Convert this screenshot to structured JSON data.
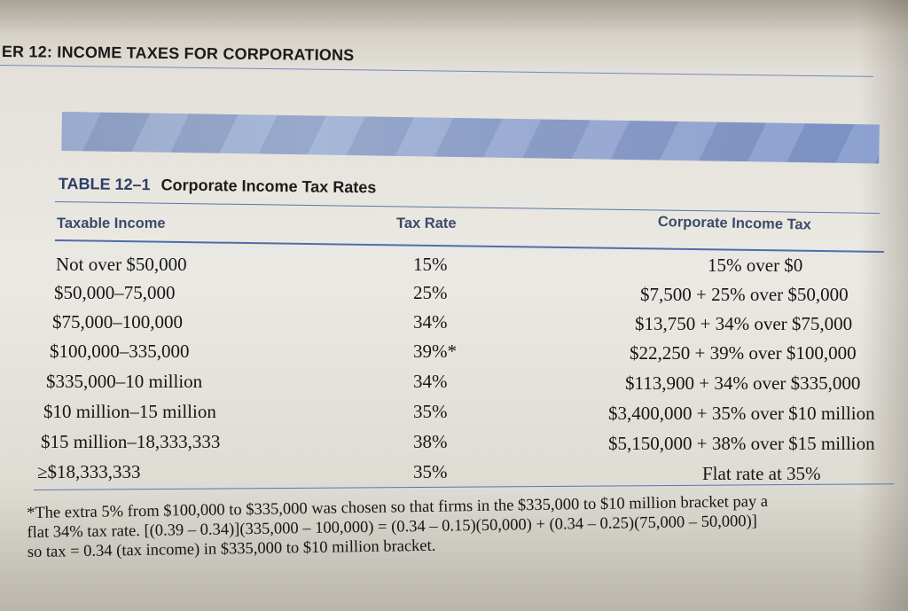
{
  "header": {
    "chapter_title": "ER 12: INCOME TAXES FOR CORPORATIONS"
  },
  "table": {
    "number": "TABLE 12–1",
    "title": "Corporate Income Tax Rates",
    "columns": [
      "Taxable Income",
      "Tax Rate",
      "Corporate Income Tax"
    ],
    "rows": [
      {
        "income": "Not over $50,000",
        "rate": "15%",
        "tax": "15% over $0"
      },
      {
        "income": "$50,000–75,000",
        "rate": "25%",
        "tax": "$7,500 + 25% over $50,000"
      },
      {
        "income": "$75,000–100,000",
        "rate": "34%",
        "tax": "$13,750 + 34% over $75,000"
      },
      {
        "income": "$100,000–335,000",
        "rate": "39%*",
        "tax": "$22,250 + 39% over $100,000"
      },
      {
        "income": "$335,000–10 million",
        "rate": "34%",
        "tax": "$113,900 + 34% over $335,000"
      },
      {
        "income": "$10 million–15 million",
        "rate": "35%",
        "tax": "$3,400,000 + 35% over $10 million"
      },
      {
        "income": "$15 million–18,333,333",
        "rate": "38%",
        "tax": "$5,150,000 + 38% over $15 million"
      },
      {
        "income": "≥$18,333,333",
        "rate": "35%",
        "tax": "Flat rate at 35%"
      }
    ]
  },
  "footnote": {
    "lines": [
      "*The extra 5% from $100,000 to $335,000 was chosen so that firms in the $335,000 to $10 million bracket pay a",
      "flat 34% tax rate. [(0.39 – 0.34)](335,000 – 100,000) = (0.34 – 0.15)(50,000) + (0.34 – 0.25)(75,000 – 50,000)]",
      "so tax = 0.34 (tax income) in $335,000 to $10 million bracket."
    ]
  },
  "colors": {
    "banner": "#8fa1c7",
    "rule": "#5876ad",
    "column_header": "#3b4a6b",
    "table_number": "#2e3e68"
  }
}
